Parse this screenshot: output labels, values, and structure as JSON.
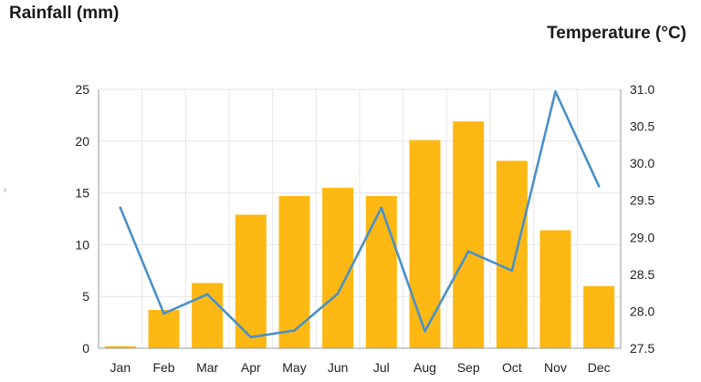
{
  "chart_data": {
    "type": "bar+line",
    "categories": [
      "Jan",
      "Feb",
      "Mar",
      "Apr",
      "May",
      "Jun",
      "Jul",
      "Aug",
      "Sep",
      "Oct",
      "Nov",
      "Dec"
    ],
    "series": [
      {
        "type": "bar",
        "axis": "left",
        "values": [
          0.2,
          3.7,
          6.3,
          12.9,
          14.7,
          15.5,
          14.7,
          20.1,
          21.9,
          18.1,
          11.4,
          6.0
        ]
      },
      {
        "type": "line",
        "axis": "right",
        "values": [
          29.4,
          27.97,
          28.23,
          27.65,
          27.74,
          28.24,
          29.4,
          27.73,
          28.81,
          28.55,
          30.97,
          29.69
        ]
      }
    ],
    "y_left": {
      "label": "Rainfall (mm)",
      "min": 0,
      "max": 25,
      "ticks": [
        "0",
        "5",
        "10",
        "15",
        "20",
        "25"
      ]
    },
    "y_right": {
      "label": "Temperature (°C)",
      "min": 27.5,
      "max": 31.0,
      "ticks": [
        "27.5",
        "28.0",
        "28.5",
        "29.0",
        "29.5",
        "30.0",
        "30.5",
        "31.0"
      ]
    },
    "colors": {
      "bar": "#FDB813",
      "line": "#4A90C8",
      "grid": "#e6e6e6"
    },
    "grid": true
  },
  "stray_mark": "›"
}
